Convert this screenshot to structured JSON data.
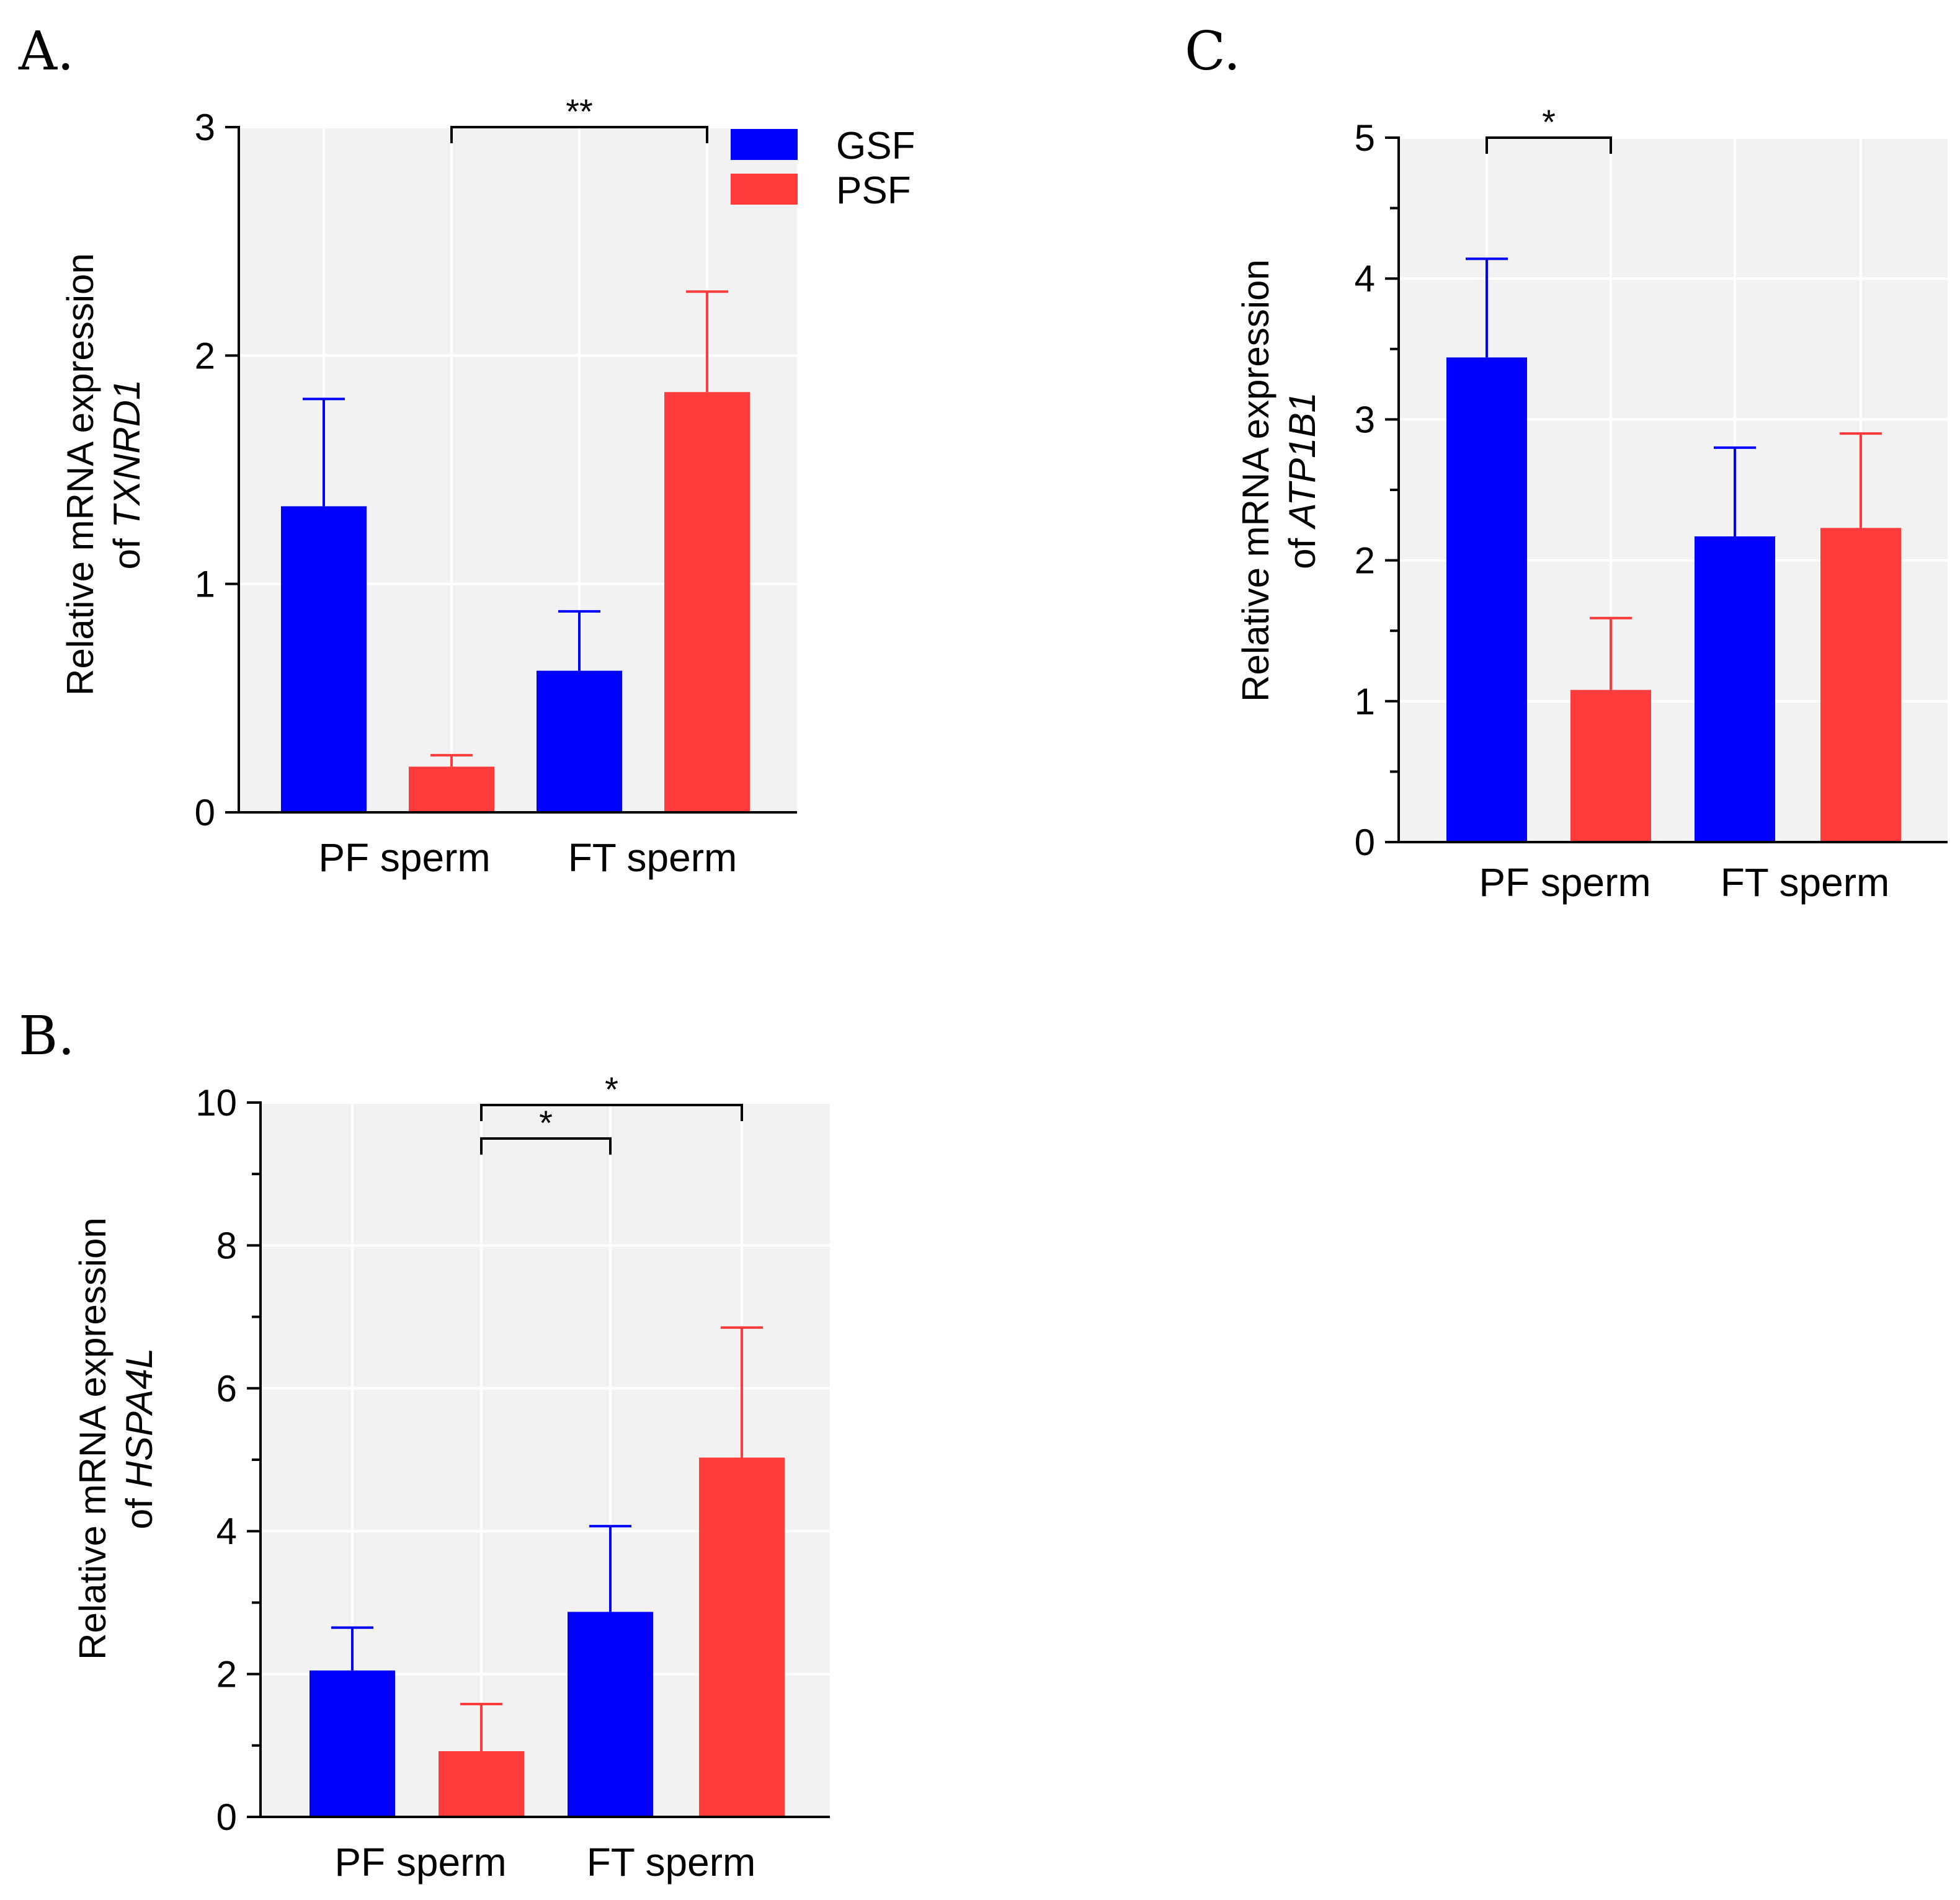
{
  "legend": [
    {
      "name": "GSF",
      "color": "#0000ff"
    },
    {
      "name": "PSF",
      "color": "#ff3b3b"
    }
  ],
  "colors": {
    "gsf": "#0000ff",
    "psf": "#ff3b3b",
    "plot_bg": "#f2f2f2",
    "grid": "#ffffff"
  },
  "chart_data": [
    {
      "panel": "A.",
      "type": "bar",
      "title": "",
      "ylabel_prefix": "Relative mRNA expression",
      "ylabel_of": "of",
      "ylabel_gene": "TXNRD1",
      "xlabel": "",
      "categories": [
        "PF sperm",
        "FT sperm"
      ],
      "series": [
        {
          "name": "GSF",
          "values": [
            1.34,
            0.62
          ],
          "errors": [
            0.47,
            0.26
          ]
        },
        {
          "name": "PSF",
          "values": [
            0.2,
            1.84
          ],
          "errors": [
            0.05,
            0.44
          ]
        }
      ],
      "ylim": [
        0,
        3
      ],
      "yticks": [
        0,
        1,
        2,
        3
      ],
      "grid": true,
      "legend_position": "top-right",
      "significance": [
        {
          "from_bar": 1,
          "to_bar": 3,
          "label": "**"
        }
      ]
    },
    {
      "panel": "B.",
      "type": "bar",
      "title": "",
      "ylabel_prefix": "Relative mRNA expression",
      "ylabel_of": "of",
      "ylabel_gene": "HSPA4L",
      "xlabel": "",
      "categories": [
        "PF sperm",
        "FT sperm"
      ],
      "series": [
        {
          "name": "GSF",
          "values": [
            2.05,
            2.87
          ],
          "errors": [
            0.6,
            1.2
          ]
        },
        {
          "name": "PSF",
          "values": [
            0.92,
            5.03
          ],
          "errors": [
            0.66,
            1.82
          ]
        }
      ],
      "ylim": [
        0,
        10
      ],
      "yticks": [
        0,
        2,
        4,
        6,
        8,
        10
      ],
      "grid": true,
      "legend_position": "none",
      "significance": [
        {
          "from_bar": 1,
          "to_bar": 2,
          "label": "*"
        },
        {
          "from_bar": 1,
          "to_bar": 3,
          "label": "*"
        }
      ]
    },
    {
      "panel": "C.",
      "type": "bar",
      "title": "",
      "ylabel_prefix": "Relative mRNA expression",
      "ylabel_of": "of",
      "ylabel_gene": "ATP1B1",
      "xlabel": "",
      "categories": [
        "PF sperm",
        "FT sperm"
      ],
      "series": [
        {
          "name": "GSF",
          "values": [
            3.44,
            2.17
          ],
          "errors": [
            0.7,
            0.63
          ]
        },
        {
          "name": "PSF",
          "values": [
            1.08,
            2.23
          ],
          "errors": [
            0.51,
            0.67
          ]
        }
      ],
      "ylim": [
        0,
        5
      ],
      "yticks": [
        0,
        1,
        2,
        3,
        4,
        5
      ],
      "grid": true,
      "legend_position": "none",
      "significance": [
        {
          "from_bar": 0,
          "to_bar": 1,
          "label": "*"
        }
      ]
    }
  ]
}
